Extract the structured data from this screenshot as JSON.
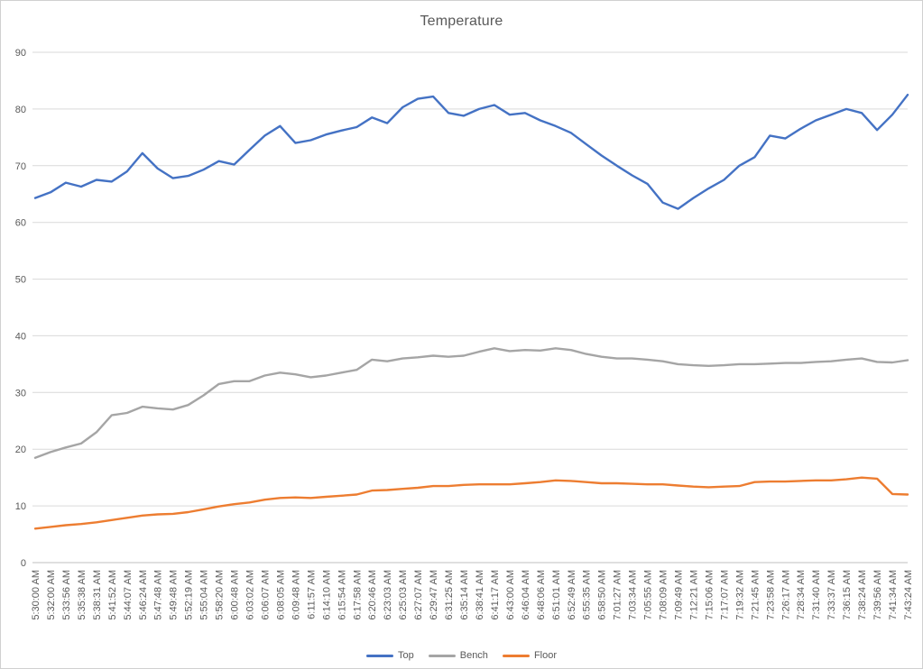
{
  "chart_data": {
    "type": "line",
    "title": "Temperature",
    "xlabel": "",
    "ylabel": "",
    "ylim": [
      0,
      90
    ],
    "ytick": 10,
    "grid": true,
    "legend_position": "bottom",
    "text_color": "#595959",
    "gridline_color": "#d9d9d9",
    "axis_color": "#bfbfbf",
    "categories": [
      "5:30:00 AM",
      "5:32:00 AM",
      "5:33:56 AM",
      "5:35:38 AM",
      "5:38:31 AM",
      "5:41:52 AM",
      "5:44:07 AM",
      "5:46:24 AM",
      "5:47:48 AM",
      "5:49:48 AM",
      "5:52:19 AM",
      "5:55:04 AM",
      "5:58:20 AM",
      "6:00:48 AM",
      "6:03:02 AM",
      "6:06:07 AM",
      "6:08:05 AM",
      "6:09:48 AM",
      "6:11:57 AM",
      "6:14:10 AM",
      "6:15:54 AM",
      "6:17:58 AM",
      "6:20:46 AM",
      "6:23:03 AM",
      "6:25:03 AM",
      "6:27:07 AM",
      "6:29:47 AM",
      "6:31:25 AM",
      "6:35:14 AM",
      "6:38:41 AM",
      "6:41:17 AM",
      "6:43:00 AM",
      "6:46:04 AM",
      "6:48:06 AM",
      "6:51:01 AM",
      "6:52:49 AM",
      "6:55:35 AM",
      "6:58:50 AM",
      "7:01:27 AM",
      "7:03:34 AM",
      "7:05:55 AM",
      "7:08:09 AM",
      "7:09:49 AM",
      "7:12:21 AM",
      "7:15:06 AM",
      "7:17:07 AM",
      "7:19:32 AM",
      "7:21:45 AM",
      "7:23:58 AM",
      "7:26:17 AM",
      "7:28:34 AM",
      "7:31:40 AM",
      "7:33:37 AM",
      "7:36:15 AM",
      "7:38:24 AM",
      "7:39:56 AM",
      "7:41:34 AM",
      "7:43:24 AM"
    ],
    "series": [
      {
        "name": "Top",
        "color": "#4472c4",
        "values": [
          64.3,
          65.3,
          67.0,
          66.3,
          67.5,
          67.2,
          69.0,
          72.2,
          69.5,
          67.8,
          68.2,
          69.3,
          70.8,
          70.2,
          72.8,
          75.3,
          77.0,
          74.0,
          74.5,
          75.5,
          76.2,
          76.8,
          78.5,
          77.5,
          80.3,
          81.8,
          82.2,
          79.3,
          78.8,
          80.0,
          80.7,
          79.0,
          79.3,
          78.0,
          77.0,
          75.8,
          73.8,
          71.8,
          70.0,
          68.3,
          66.8,
          63.5,
          62.4,
          64.3,
          66.0,
          67.5,
          70.0,
          71.5,
          75.3,
          74.8,
          76.5,
          78.0,
          79.0,
          80.0,
          79.3,
          76.3,
          79.0,
          82.5
        ]
      },
      {
        "name": "Bench",
        "color": "#a5a5a5",
        "values": [
          18.5,
          19.5,
          20.3,
          21.0,
          23.0,
          26.0,
          26.4,
          27.5,
          27.2,
          27.0,
          27.8,
          29.5,
          31.5,
          32.0,
          32.0,
          33.0,
          33.5,
          33.2,
          32.7,
          33.0,
          33.5,
          34.0,
          35.8,
          35.5,
          36.0,
          36.2,
          36.5,
          36.3,
          36.5,
          37.2,
          37.8,
          37.3,
          37.5,
          37.4,
          37.8,
          37.5,
          36.8,
          36.3,
          36.0,
          36.0,
          35.8,
          35.5,
          35.0,
          34.8,
          34.7,
          34.8,
          35.0,
          35.0,
          35.1,
          35.2,
          35.2,
          35.4,
          35.5,
          35.8,
          36.0,
          35.4,
          35.3,
          35.7
        ]
      },
      {
        "name": "Floor",
        "color": "#ed7d31",
        "values": [
          6.0,
          6.3,
          6.6,
          6.8,
          7.1,
          7.5,
          7.9,
          8.3,
          8.5,
          8.6,
          8.9,
          9.4,
          9.9,
          10.3,
          10.6,
          11.1,
          11.4,
          11.5,
          11.4,
          11.6,
          11.8,
          12.0,
          12.7,
          12.8,
          13.0,
          13.2,
          13.5,
          13.5,
          13.7,
          13.8,
          13.8,
          13.8,
          14.0,
          14.2,
          14.5,
          14.4,
          14.2,
          14.0,
          14.0,
          13.9,
          13.8,
          13.8,
          13.6,
          13.4,
          13.3,
          13.4,
          13.5,
          14.2,
          14.3,
          14.3,
          14.4,
          14.5,
          14.5,
          14.7,
          15.0,
          14.8,
          12.1,
          12.0
        ]
      }
    ]
  }
}
